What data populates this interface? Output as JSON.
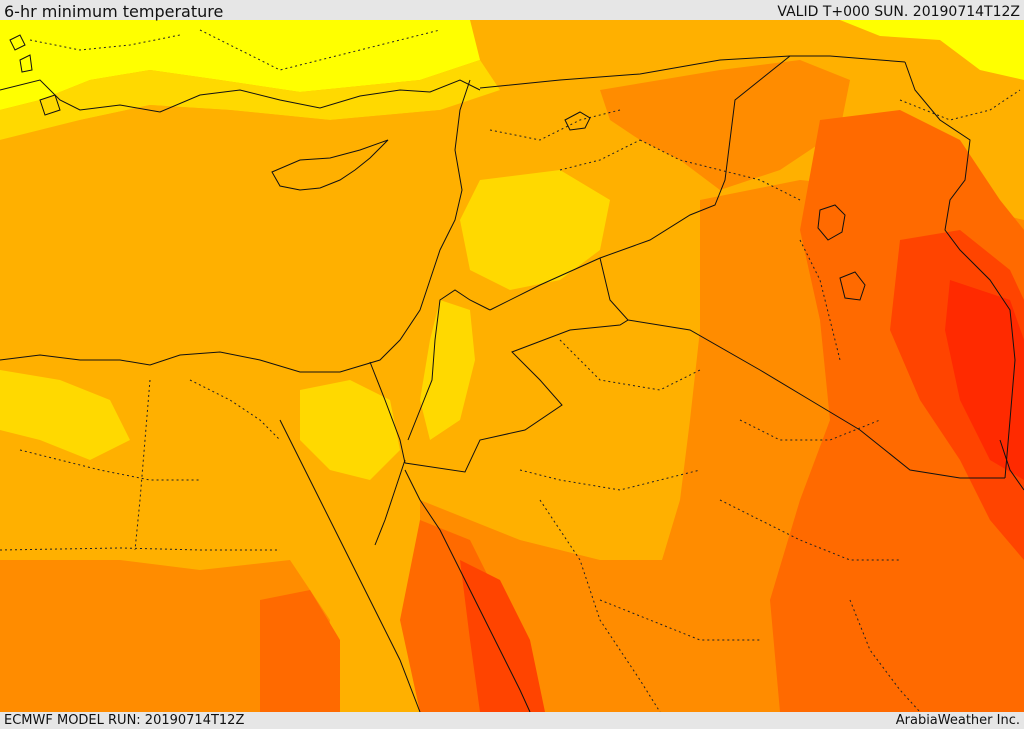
{
  "header": {
    "title": "6-hr minimum temperature",
    "valid": "VALID T+000 SUN. 20190714T12Z"
  },
  "footer": {
    "model_run": "ECMWF MODEL RUN: 20190714T12Z",
    "credit": "ArabiaWeather Inc."
  },
  "map": {
    "region": "Eastern Mediterranean, Levant, Iraq and northern Arabian Peninsula",
    "field": "minimum temperature",
    "colors": {
      "light_yellow": "#ffff00",
      "yellow": "#ffd900",
      "orange_yellow": "#ffb000",
      "orange": "#ff8c00",
      "dark_orange": "#ff6a00",
      "red_orange": "#ff4400",
      "red": "#ff2a00",
      "border": "#111111",
      "title_bar": "#e6e6e6"
    }
  }
}
